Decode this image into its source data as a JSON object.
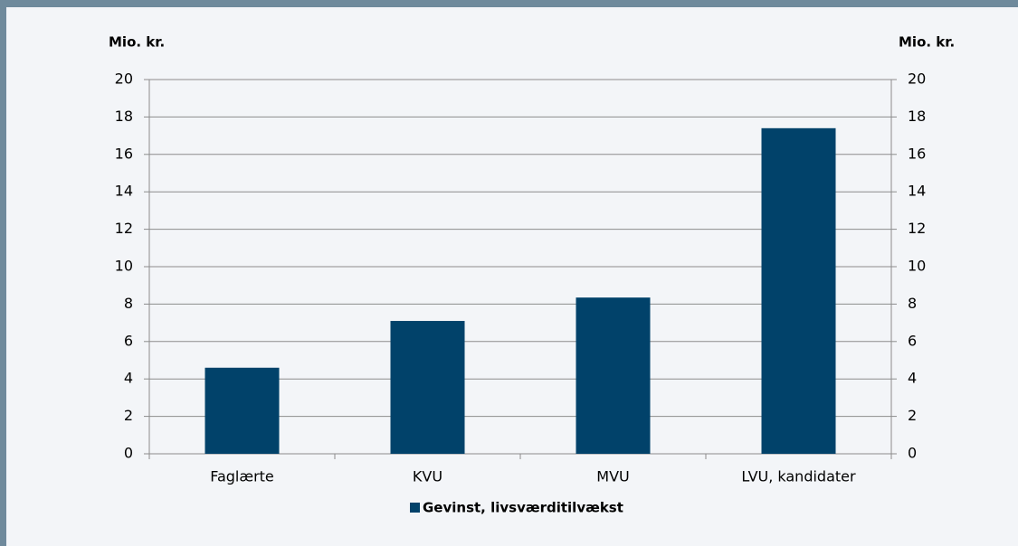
{
  "chart_data": {
    "type": "bar",
    "y_label": "Mio. kr.",
    "y2_label": "Mio. kr.",
    "categories": [
      "Faglærte",
      "KVU",
      "MVU",
      "LVU, kandidater"
    ],
    "series": [
      {
        "name": "Gevinst, livsværditilvækst",
        "color": "#01426a",
        "values": [
          4.6,
          7.1,
          8.35,
          17.4
        ]
      }
    ],
    "ylim": [
      0,
      20
    ],
    "yticks": [
      0,
      2,
      4,
      6,
      8,
      10,
      12,
      14,
      16,
      18,
      20
    ],
    "y2lim": [
      0,
      20
    ],
    "y2ticks": [
      0,
      2,
      4,
      6,
      8,
      10,
      12,
      14,
      16,
      18,
      20
    ],
    "grid": true
  }
}
